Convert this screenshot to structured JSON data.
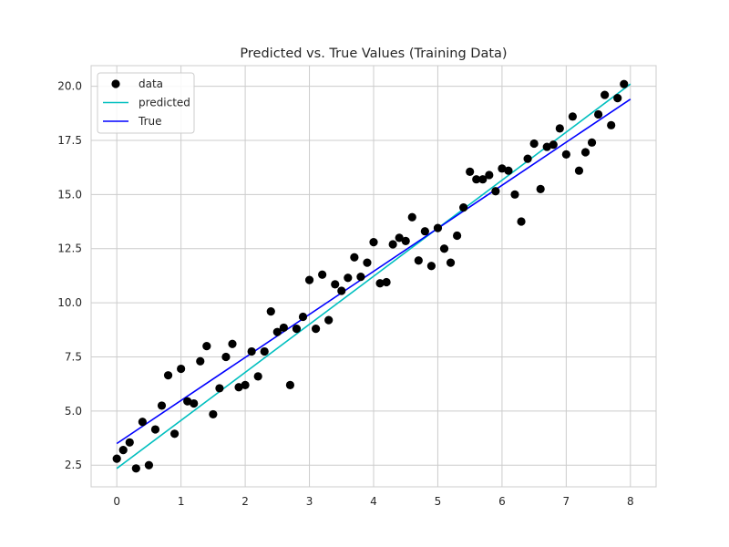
{
  "chart_data": {
    "type": "scatter",
    "title": "Predicted vs. True Values (Training Data)",
    "xlabel": "",
    "ylabel": "",
    "xlim": [
      -0.4,
      8.4
    ],
    "ylim": [
      1.5,
      20.95
    ],
    "x_ticks": [
      0,
      1,
      2,
      3,
      4,
      5,
      6,
      7,
      8
    ],
    "x_tick_labels": [
      "0",
      "1",
      "2",
      "3",
      "4",
      "5",
      "6",
      "7",
      "8"
    ],
    "y_ticks": [
      2.5,
      5.0,
      7.5,
      10.0,
      12.5,
      15.0,
      17.5,
      20.0
    ],
    "y_tick_labels": [
      "2.5",
      "5.0",
      "7.5",
      "10.0",
      "12.5",
      "15.0",
      "17.5",
      "20.0"
    ],
    "grid": true,
    "legend_position": "upper-left",
    "series": [
      {
        "name": "data",
        "kind": "scatter",
        "color": "#000000",
        "points": [
          [
            0.0,
            2.8
          ],
          [
            0.1,
            3.2
          ],
          [
            0.2,
            3.55
          ],
          [
            0.3,
            2.35
          ],
          [
            0.4,
            4.5
          ],
          [
            0.5,
            2.5
          ],
          [
            0.6,
            4.15
          ],
          [
            0.7,
            5.25
          ],
          [
            0.8,
            6.65
          ],
          [
            0.9,
            3.95
          ],
          [
            1.0,
            6.95
          ],
          [
            1.1,
            5.45
          ],
          [
            1.2,
            5.35
          ],
          [
            1.3,
            7.3
          ],
          [
            1.4,
            8.0
          ],
          [
            1.5,
            4.85
          ],
          [
            1.6,
            6.05
          ],
          [
            1.7,
            7.5
          ],
          [
            1.8,
            8.1
          ],
          [
            1.9,
            6.1
          ],
          [
            2.0,
            6.2
          ],
          [
            2.1,
            7.75
          ],
          [
            2.2,
            6.6
          ],
          [
            2.3,
            7.75
          ],
          [
            2.4,
            9.6
          ],
          [
            2.5,
            8.65
          ],
          [
            2.6,
            8.85
          ],
          [
            2.7,
            6.2
          ],
          [
            2.8,
            8.8
          ],
          [
            2.9,
            9.35
          ],
          [
            3.0,
            11.05
          ],
          [
            3.1,
            8.8
          ],
          [
            3.2,
            11.3
          ],
          [
            3.3,
            9.2
          ],
          [
            3.4,
            10.85
          ],
          [
            3.5,
            10.55
          ],
          [
            3.6,
            11.15
          ],
          [
            3.7,
            12.1
          ],
          [
            3.8,
            11.2
          ],
          [
            3.9,
            11.85
          ],
          [
            4.0,
            12.8
          ],
          [
            4.1,
            10.9
          ],
          [
            4.2,
            10.95
          ],
          [
            4.3,
            12.7
          ],
          [
            4.4,
            13.0
          ],
          [
            4.5,
            12.85
          ],
          [
            4.6,
            13.95
          ],
          [
            4.7,
            11.95
          ],
          [
            4.8,
            13.3
          ],
          [
            4.9,
            11.7
          ],
          [
            5.0,
            13.45
          ],
          [
            5.1,
            12.5
          ],
          [
            5.2,
            11.85
          ],
          [
            5.3,
            13.1
          ],
          [
            5.4,
            14.4
          ],
          [
            5.5,
            16.05
          ],
          [
            5.6,
            15.7
          ],
          [
            5.7,
            15.7
          ],
          [
            5.8,
            15.9
          ],
          [
            5.9,
            15.15
          ],
          [
            6.0,
            16.2
          ],
          [
            6.1,
            16.1
          ],
          [
            6.2,
            15.0
          ],
          [
            6.3,
            13.75
          ],
          [
            6.4,
            16.65
          ],
          [
            6.5,
            17.35
          ],
          [
            6.6,
            15.25
          ],
          [
            6.7,
            17.2
          ],
          [
            6.8,
            17.3
          ],
          [
            6.9,
            18.05
          ],
          [
            7.0,
            16.85
          ],
          [
            7.1,
            18.6
          ],
          [
            7.2,
            16.1
          ],
          [
            7.3,
            16.95
          ],
          [
            7.4,
            17.4
          ],
          [
            7.5,
            18.7
          ],
          [
            7.6,
            19.6
          ],
          [
            7.7,
            18.2
          ],
          [
            7.8,
            19.45
          ],
          [
            7.9,
            20.1
          ]
        ]
      },
      {
        "name": "predicted",
        "kind": "line",
        "color": "#00bfbf",
        "points": [
          [
            0.0,
            2.35
          ],
          [
            8.0,
            20.1
          ]
        ]
      },
      {
        "name": "True",
        "kind": "line",
        "color": "#0000ff",
        "points": [
          [
            0.0,
            3.5
          ],
          [
            8.0,
            19.4
          ]
        ]
      }
    ]
  }
}
